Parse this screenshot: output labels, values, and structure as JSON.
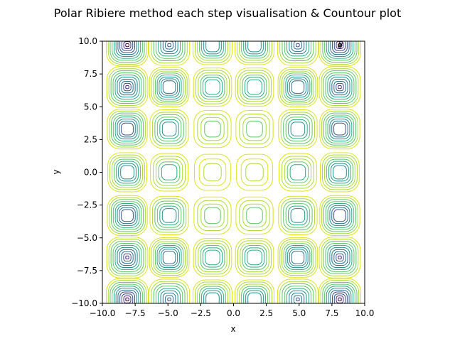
{
  "chart_data": {
    "type": "contour",
    "title": "Polar Ribiere method each step visualisation & Countour plot",
    "xlabel": "x",
    "ylabel": "y",
    "xlim": [
      -10,
      10
    ],
    "ylim": [
      -10,
      10
    ],
    "xticks": [
      -10.0,
      -7.5,
      -5.0,
      -2.5,
      0.0,
      2.5,
      5.0,
      7.5,
      10.0
    ],
    "xtick_labels": [
      "−10.0",
      "−7.5",
      "−5.0",
      "−2.5",
      "0.0",
      "2.5",
      "5.0",
      "7.5",
      "10.0"
    ],
    "yticks": [
      -10.0,
      -7.5,
      -5.0,
      -2.5,
      0.0,
      2.5,
      5.0,
      7.5,
      10.0
    ],
    "ytick_labels": [
      "−10.0",
      "−7.5",
      "−5.0",
      "−2.5",
      "0.0",
      "2.5",
      "5.0",
      "7.5",
      "10.0"
    ],
    "grid": false,
    "colormap": "viridis",
    "contour_centers_x": [
      -8.1,
      -4.9,
      -1.6,
      1.6,
      4.9,
      8.1
    ],
    "contour_centers_y": [
      9.7,
      6.5,
      3.3,
      0.0,
      -3.3,
      -6.5,
      -9.7
    ],
    "optimizer_path": [
      [
        8.2,
        9.9
      ],
      [
        8.15,
        9.7
      ],
      [
        8.1,
        9.6
      ]
    ]
  }
}
